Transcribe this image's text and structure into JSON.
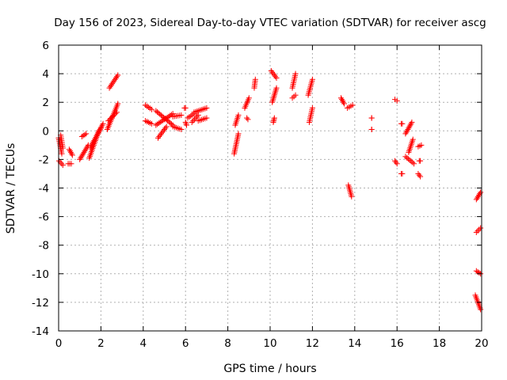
{
  "chart_data": {
    "type": "scatter",
    "title": "Day 156 of 2023, Sidereal Day-to-day VTEC variation (SDTVAR) for receiver ascg",
    "xlabel": "GPS time / hours",
    "ylabel": "SDTVAR / TECUs",
    "xlim": [
      0,
      20
    ],
    "ylim": [
      -14,
      6
    ],
    "xticks": [
      0,
      2,
      4,
      6,
      8,
      10,
      12,
      14,
      16,
      18,
      20
    ],
    "yticks": [
      -14,
      -12,
      -10,
      -8,
      -6,
      -4,
      -2,
      0,
      2,
      4,
      6
    ],
    "grid": true,
    "marker": "+",
    "color": "#ff0000",
    "segments": [
      {
        "x0": 0.0,
        "y0": -0.5,
        "x1": 0.15,
        "y1": -1.6
      },
      {
        "x0": 0.02,
        "y0": -2.1,
        "x1": 0.2,
        "y1": -2.4
      },
      {
        "x0": 0.1,
        "y0": -0.3,
        "x1": 0.2,
        "y1": -1.2
      },
      {
        "x0": 0.5,
        "y0": -1.3,
        "x1": 0.65,
        "y1": -1.7
      },
      {
        "x0": 0.45,
        "y0": -2.3,
        "x1": 0.6,
        "y1": -2.3
      },
      {
        "x0": 1.0,
        "y0": -2.0,
        "x1": 1.4,
        "y1": -1.0
      },
      {
        "x0": 1.1,
        "y0": -0.4,
        "x1": 1.3,
        "y1": -0.2
      },
      {
        "x0": 1.45,
        "y0": -1.9,
        "x1": 1.9,
        "y1": 0.0
      },
      {
        "x0": 1.5,
        "y0": -1.2,
        "x1": 2.1,
        "y1": 0.5
      },
      {
        "x0": 1.6,
        "y0": -0.9,
        "x1": 2.0,
        "y1": 0.2
      },
      {
        "x0": 2.3,
        "y0": 0.1,
        "x1": 2.8,
        "y1": 1.9
      },
      {
        "x0": 2.35,
        "y0": 0.7,
        "x1": 2.75,
        "y1": 1.3
      },
      {
        "x0": 2.4,
        "y0": 3.0,
        "x1": 2.8,
        "y1": 3.9
      },
      {
        "x0": 4.1,
        "y0": 1.8,
        "x1": 4.4,
        "y1": 1.5
      },
      {
        "x0": 4.1,
        "y0": 0.7,
        "x1": 4.4,
        "y1": 0.5
      },
      {
        "x0": 4.6,
        "y0": 1.4,
        "x1": 5.4,
        "y1": 0.4
      },
      {
        "x0": 4.6,
        "y0": 0.4,
        "x1": 5.4,
        "y1": 1.2
      },
      {
        "x0": 4.7,
        "y0": -0.5,
        "x1": 5.1,
        "y1": 0.3
      },
      {
        "x0": 5.4,
        "y0": 1.0,
        "x1": 5.8,
        "y1": 1.1
      },
      {
        "x0": 5.4,
        "y0": 0.3,
        "x1": 5.8,
        "y1": 0.1
      },
      {
        "x0": 5.95,
        "y0": 1.6,
        "x1": 6.0,
        "y1": 1.6
      },
      {
        "x0": 6.0,
        "y0": 0.6,
        "x1": 6.05,
        "y1": 0.4
      },
      {
        "x0": 6.1,
        "y0": 0.9,
        "x1": 6.4,
        "y1": 1.2
      },
      {
        "x0": 6.3,
        "y0": 0.6,
        "x1": 6.6,
        "y1": 1.1
      },
      {
        "x0": 6.4,
        "y0": 1.3,
        "x1": 7.0,
        "y1": 1.6
      },
      {
        "x0": 6.6,
        "y0": 0.7,
        "x1": 7.0,
        "y1": 0.9
      },
      {
        "x0": 8.3,
        "y0": -1.6,
        "x1": 8.5,
        "y1": -0.2
      },
      {
        "x0": 8.35,
        "y0": 0.4,
        "x1": 8.5,
        "y1": 1.1
      },
      {
        "x0": 8.8,
        "y0": 1.6,
        "x1": 9.0,
        "y1": 2.3
      },
      {
        "x0": 8.9,
        "y0": 0.9,
        "x1": 8.95,
        "y1": 0.8
      },
      {
        "x0": 9.25,
        "y0": 3.0,
        "x1": 9.3,
        "y1": 3.6
      },
      {
        "x0": 10.05,
        "y0": 4.2,
        "x1": 10.3,
        "y1": 3.7
      },
      {
        "x0": 10.1,
        "y0": 2.0,
        "x1": 10.3,
        "y1": 3.0
      },
      {
        "x0": 10.15,
        "y0": 0.6,
        "x1": 10.2,
        "y1": 0.9
      },
      {
        "x0": 11.05,
        "y0": 3.0,
        "x1": 11.2,
        "y1": 4.0
      },
      {
        "x0": 11.05,
        "y0": 2.3,
        "x1": 11.2,
        "y1": 2.5
      },
      {
        "x0": 11.8,
        "y0": 2.5,
        "x1": 12.0,
        "y1": 3.6
      },
      {
        "x0": 11.85,
        "y0": 0.6,
        "x1": 12.0,
        "y1": 1.6
      },
      {
        "x0": 13.35,
        "y0": 2.3,
        "x1": 13.5,
        "y1": 1.9
      },
      {
        "x0": 13.65,
        "y0": 1.6,
        "x1": 13.9,
        "y1": 1.8
      },
      {
        "x0": 13.7,
        "y0": -3.8,
        "x1": 13.85,
        "y1": -4.6
      },
      {
        "x0": 14.8,
        "y0": 0.9,
        "x1": 14.8,
        "y1": 0.9
      },
      {
        "x0": 14.8,
        "y0": 0.1,
        "x1": 14.8,
        "y1": 0.1
      },
      {
        "x0": 15.9,
        "y0": 2.2,
        "x1": 16.0,
        "y1": 2.1
      },
      {
        "x0": 15.9,
        "y0": -2.1,
        "x1": 16.0,
        "y1": -2.3
      },
      {
        "x0": 16.2,
        "y0": 0.5,
        "x1": 16.25,
        "y1": 0.5
      },
      {
        "x0": 16.2,
        "y0": -3.0,
        "x1": 16.25,
        "y1": -3.0
      },
      {
        "x0": 16.4,
        "y0": -0.2,
        "x1": 16.7,
        "y1": 0.6
      },
      {
        "x0": 16.4,
        "y0": -1.8,
        "x1": 16.8,
        "y1": -2.3
      },
      {
        "x0": 16.55,
        "y0": -1.5,
        "x1": 16.75,
        "y1": -0.6
      },
      {
        "x0": 17.0,
        "y0": -1.1,
        "x1": 17.15,
        "y1": -1.0
      },
      {
        "x0": 17.0,
        "y0": -3.0,
        "x1": 17.1,
        "y1": -3.2
      },
      {
        "x0": 17.05,
        "y0": -2.1,
        "x1": 17.1,
        "y1": -2.1
      },
      {
        "x0": 19.75,
        "y0": -4.8,
        "x1": 19.95,
        "y1": -4.3
      },
      {
        "x0": 19.75,
        "y0": -7.1,
        "x1": 19.95,
        "y1": -6.8
      },
      {
        "x0": 19.75,
        "y0": -9.8,
        "x1": 19.95,
        "y1": -10.0
      },
      {
        "x0": 19.7,
        "y0": -11.5,
        "x1": 19.95,
        "y1": -12.5
      }
    ]
  }
}
